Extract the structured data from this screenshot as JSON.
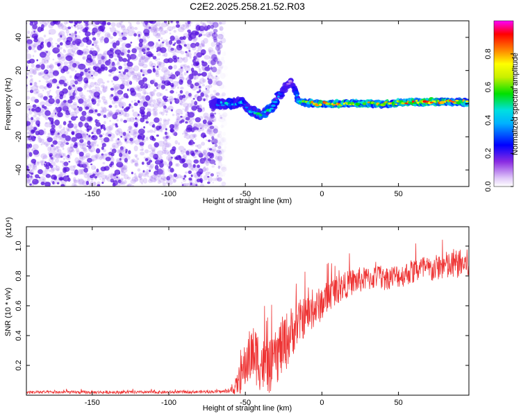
{
  "title": "C2E2.2025.258.21.52.R03",
  "colors": {
    "axis": "#000000",
    "snr_line": "#ee3333",
    "scatter_base": "#a070ee",
    "scatter_dark": "#5511dd"
  },
  "chart_data": [
    {
      "type": "heatmap",
      "id": "spectrogram",
      "title": "C2E2.2025.258.21.52.R03",
      "xlabel": "Height of straight line (km)",
      "ylabel": "Frequency (Hz)",
      "xlim": [
        -193,
        96
      ],
      "ylim": [
        -50,
        50
      ],
      "xticks": [
        -150,
        -100,
        -50,
        0,
        50
      ],
      "xtick_labels": [
        "-150",
        "-100",
        "-50",
        "0",
        "50"
      ],
      "yticks": [
        -40,
        -20,
        0,
        20,
        40
      ],
      "ytick_labels": [
        "-40",
        "-20",
        "0",
        "20",
        "40"
      ],
      "noise_region_x": [
        -193,
        -65
      ],
      "signal_track": [
        {
          "x": -72,
          "y": 0,
          "amp": 0.25
        },
        {
          "x": -65,
          "y": 0,
          "amp": 0.4
        },
        {
          "x": -58,
          "y": 0,
          "amp": 0.45
        },
        {
          "x": -52,
          "y": 1,
          "amp": 0.4
        },
        {
          "x": -48,
          "y": -4,
          "amp": 0.45
        },
        {
          "x": -44,
          "y": -5,
          "amp": 0.5
        },
        {
          "x": -40,
          "y": -7,
          "amp": 0.5
        },
        {
          "x": -36,
          "y": -5,
          "amp": 0.5
        },
        {
          "x": -32,
          "y": -2,
          "amp": 0.5
        },
        {
          "x": -28,
          "y": 5,
          "amp": 0.45
        },
        {
          "x": -24,
          "y": 10,
          "amp": 0.2
        },
        {
          "x": -20,
          "y": 14,
          "amp": 0.1
        },
        {
          "x": -15,
          "y": 1,
          "amp": 0.6
        },
        {
          "x": -5,
          "y": 0,
          "amp": 0.75
        },
        {
          "x": 5,
          "y": 0,
          "amp": 0.8
        },
        {
          "x": 20,
          "y": 0,
          "amp": 0.7
        },
        {
          "x": 40,
          "y": 0,
          "amp": 0.75
        },
        {
          "x": 60,
          "y": 1,
          "amp": 0.8
        },
        {
          "x": 80,
          "y": 1,
          "amp": 0.85
        },
        {
          "x": 95,
          "y": 1,
          "amp": 0.7
        }
      ],
      "colorbar": {
        "label": "Normalized spectral amplitude",
        "range": [
          0,
          1
        ],
        "ticks": [
          0.0,
          0.2,
          0.4,
          0.6,
          0.8
        ],
        "tick_labels": [
          "0.0",
          "0.2",
          "0.4",
          "0.6",
          "0.8"
        ]
      }
    },
    {
      "type": "line",
      "id": "snr",
      "xlabel": "Height of straight line (km)",
      "ylabel": "SNR (10 * v/v)",
      "y_multiplier": "(x10⁴)",
      "xlim": [
        -193,
        96
      ],
      "ylim": [
        0,
        1.13
      ],
      "xticks": [
        -150,
        -100,
        -50,
        0,
        50
      ],
      "xtick_labels": [
        "-150",
        "-100",
        "-50",
        "0",
        "50"
      ],
      "yticks": [
        0.2,
        0.4,
        0.6,
        0.8,
        1.0
      ],
      "ytick_labels": [
        "0.2",
        "0.4",
        "0.6",
        "0.8",
        "1.0"
      ],
      "series": [
        {
          "name": "SNR",
          "x": [
            -193,
            -150,
            -100,
            -60,
            -56,
            -52,
            -48,
            -44,
            -40,
            -36,
            -32,
            -28,
            -24,
            -20,
            -16,
            -12,
            -8,
            -4,
            0,
            4,
            8,
            12,
            16,
            20,
            24,
            28,
            32,
            36,
            40,
            44,
            48,
            52,
            56,
            60,
            64,
            68,
            72,
            76,
            80,
            84,
            88,
            92,
            96
          ],
          "y": [
            0.02,
            0.02,
            0.02,
            0.025,
            0.06,
            0.15,
            0.25,
            0.28,
            0.22,
            0.18,
            0.2,
            0.3,
            0.35,
            0.42,
            0.48,
            0.52,
            0.55,
            0.58,
            0.62,
            0.66,
            0.7,
            0.72,
            0.74,
            0.76,
            0.77,
            0.78,
            0.78,
            0.8,
            0.78,
            0.79,
            0.8,
            0.8,
            0.82,
            0.83,
            0.85,
            0.84,
            0.84,
            0.86,
            0.87,
            0.86,
            0.88,
            0.88,
            0.88
          ],
          "noise_amplitude": [
            0.01,
            0.01,
            0.01,
            0.01,
            0.06,
            0.14,
            0.18,
            0.2,
            0.2,
            0.18,
            0.18,
            0.2,
            0.2,
            0.18,
            0.15,
            0.14,
            0.13,
            0.12,
            0.12,
            0.11,
            0.1,
            0.1,
            0.09,
            0.09,
            0.09,
            0.08,
            0.08,
            0.08,
            0.08,
            0.08,
            0.08,
            0.08,
            0.08,
            0.09,
            0.09,
            0.09,
            0.09,
            0.09,
            0.1,
            0.1,
            0.1,
            0.1,
            0.1
          ]
        }
      ],
      "grid": false
    }
  ]
}
